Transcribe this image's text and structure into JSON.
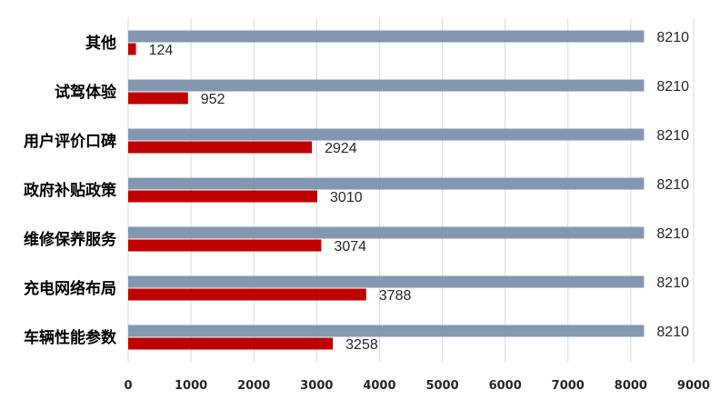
{
  "chart_data": {
    "type": "bar",
    "orientation": "horizontal",
    "categories": [
      "车辆性能参数",
      "充电网络布局",
      "维修保养服务",
      "政府补贴政策",
      "用户评价口碑",
      "试驾体验",
      "其他"
    ],
    "series": [
      {
        "values": [
          8210,
          8210,
          8210,
          8210,
          8210,
          8210,
          8210
        ],
        "color": "#8497b0"
      },
      {
        "values": [
          3258,
          3788,
          3074,
          3010,
          2924,
          952,
          124
        ],
        "color": "#c00000"
      }
    ],
    "xlim": [
      0,
      9000
    ],
    "xticks": [
      0,
      1000,
      2000,
      3000,
      4000,
      5000,
      6000,
      7000,
      8000,
      9000
    ],
    "grid": true,
    "legend": "none",
    "title": "",
    "xlabel": "",
    "ylabel": ""
  }
}
